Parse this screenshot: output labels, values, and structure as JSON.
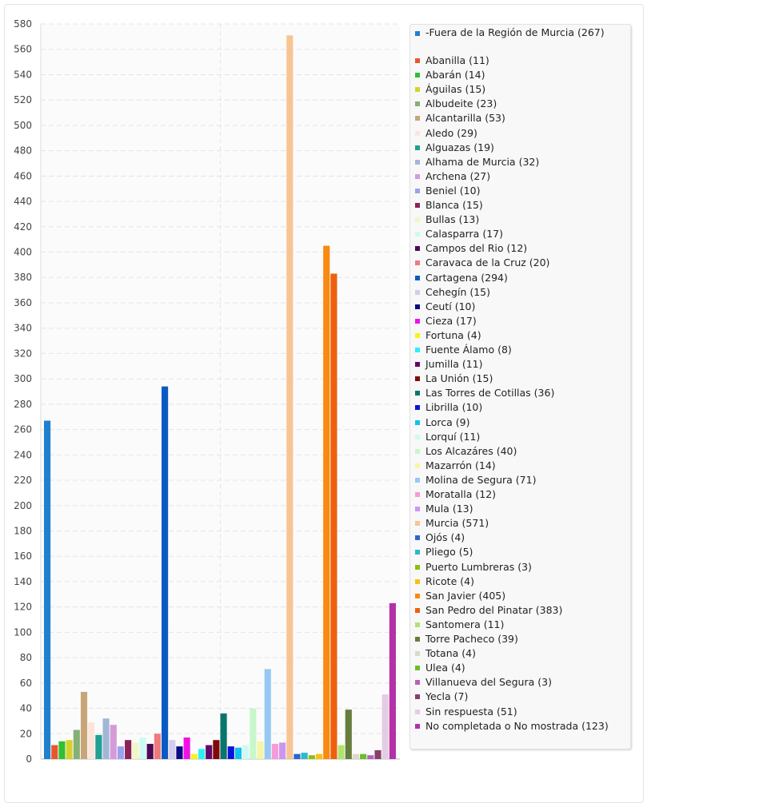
{
  "chart_data": {
    "type": "bar",
    "ylim": [
      0,
      580
    ],
    "yticks": [
      0,
      20,
      40,
      60,
      80,
      100,
      120,
      140,
      160,
      180,
      200,
      220,
      240,
      260,
      280,
      300,
      320,
      340,
      360,
      380,
      400,
      420,
      440,
      460,
      480,
      500,
      520,
      540,
      560,
      580
    ],
    "grid": true,
    "legend_position": "right",
    "categories": [
      "-Fuera de la Región de Murcia (267)",
      "Abanilla (11)",
      "Abarán (14)",
      "Águilas (15)",
      "Albudeite (23)",
      "Alcantarilla (53)",
      "Aledo (29)",
      "Alguazas (19)",
      "Alhama de Murcia (32)",
      "Archena (27)",
      "Beniel (10)",
      "Blanca (15)",
      "Bullas (13)",
      "Calasparra (17)",
      "Campos del Rio (12)",
      "Caravaca de la Cruz (20)",
      "Cartagena (294)",
      "Cehegín (15)",
      "Ceutí (10)",
      "Cieza (17)",
      "Fortuna (4)",
      "Fuente Álamo (8)",
      "Jumilla (11)",
      "La Unión (15)",
      "Las Torres de Cotillas (36)",
      "Librilla (10)",
      "Lorca (9)",
      "Lorquí (11)",
      "Los Alcazáres (40)",
      "Mazarrón (14)",
      "Molina de Segura (71)",
      "Moratalla (12)",
      "Mula (13)",
      "Murcia (571)",
      "Ojós (4)",
      "Pliego (5)",
      "Puerto Lumbreras (3)",
      "Ricote (4)",
      "San Javier (405)",
      "San Pedro del Pinatar (383)",
      "Santomera (11)",
      "Torre Pacheco (39)",
      "Totana (4)",
      "Ulea (4)",
      "Villanueva del Segura (3)",
      "Yecla (7)",
      "Sin respuesta (51)",
      "No completada o No mostrada (123)"
    ],
    "values": [
      267,
      11,
      14,
      15,
      23,
      53,
      29,
      19,
      32,
      27,
      10,
      15,
      13,
      17,
      12,
      20,
      294,
      15,
      10,
      17,
      4,
      8,
      11,
      15,
      36,
      10,
      9,
      11,
      40,
      14,
      71,
      12,
      13,
      571,
      4,
      5,
      3,
      4,
      405,
      383,
      11,
      39,
      4,
      4,
      3,
      7,
      51,
      123
    ],
    "colors": [
      "#1f80d0",
      "#e8572a",
      "#2fc132",
      "#d5d22b",
      "#85b076",
      "#c8a579",
      "#fbe5da",
      "#21a093",
      "#a2b7d7",
      "#d59ad8",
      "#9aa1ee",
      "#8c2356",
      "#f2f5c6",
      "#cdfbf3",
      "#4e0a56",
      "#f0797a",
      "#0b5ac3",
      "#d2ccee",
      "#0a0a86",
      "#f310e6",
      "#f4f41b",
      "#2df0f3",
      "#62096b",
      "#820909",
      "#0a756d",
      "#0a14d8",
      "#10c2ef",
      "#cff9f3",
      "#c8f7cc",
      "#f6f5a5",
      "#96c8f5",
      "#f79ad5",
      "#cd95f1",
      "#f7c594",
      "#2e62d8",
      "#2db9c8",
      "#8bbf12",
      "#f7c10d",
      "#fa8911",
      "#ee600c",
      "#b1e36e",
      "#667d3d",
      "#dadac8",
      "#6bbf28",
      "#b662b9",
      "#873f6b",
      "#e4cde2",
      "#b42fa8"
    ]
  }
}
